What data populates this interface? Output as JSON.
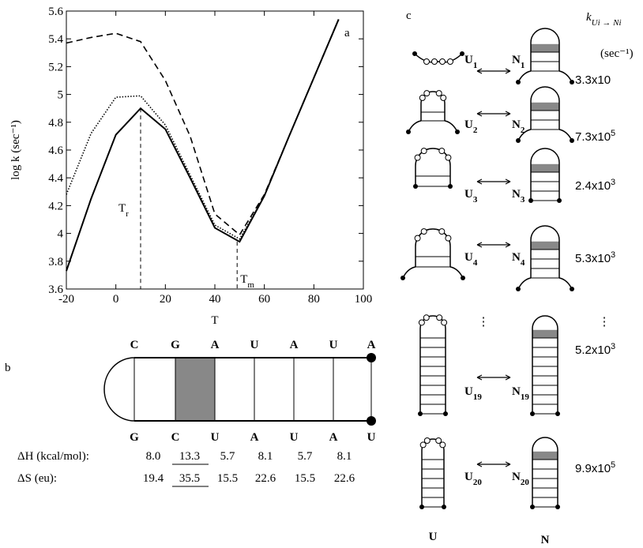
{
  "chart_data": {
    "type": "line",
    "panel_label": "a",
    "x_label": "T",
    "y_label": "log k (sec⁻¹)",
    "x": [
      -20,
      -10,
      0,
      10,
      20,
      30,
      40,
      50,
      60,
      70,
      80,
      90
    ],
    "xlim": [
      -20,
      100
    ],
    "xticks": [
      -20,
      0,
      20,
      40,
      60,
      80,
      100
    ],
    "ylim": [
      3.6,
      5.6
    ],
    "yticks": [
      3.6,
      3.8,
      4,
      4.2,
      4.4,
      4.6,
      4.8,
      5,
      5.2,
      5.4,
      5.6
    ],
    "series": [
      {
        "color": "#000000",
        "dash": "solid",
        "values": [
          3.73,
          4.25,
          4.71,
          4.9,
          4.75,
          4.4,
          4.04,
          3.94,
          4.27,
          4.7,
          5.12,
          5.54
        ]
      },
      {
        "color": "#000000",
        "dash": "dotted",
        "values": [
          4.28,
          4.72,
          4.98,
          4.99,
          4.78,
          4.42,
          4.06,
          3.96,
          4.27,
          4.7,
          5.12,
          5.54
        ]
      },
      {
        "color": "#000000",
        "dash": "dashed",
        "values": [
          5.37,
          5.41,
          5.44,
          5.38,
          5.1,
          4.7,
          4.14,
          3.99,
          4.28,
          4.7,
          5.12,
          5.54
        ]
      }
    ],
    "annotations": [
      {
        "text": "T",
        "sub": "r",
        "x": 10,
        "y": 4.9
      },
      {
        "text": "T",
        "sub": "m",
        "x": 49,
        "y": 3.94
      }
    ]
  },
  "panel_b": {
    "label": "b",
    "top_bases": [
      "C",
      "G",
      "A",
      "U",
      "A",
      "U",
      "A"
    ],
    "bottom_bases": [
      "G",
      "C",
      "U",
      "A",
      "U",
      "A",
      "U"
    ],
    "dh_label": "ΔH (kcal/mol):",
    "dh": [
      "8.0",
      "13.3",
      "5.7",
      "8.1",
      "5.7",
      "8.1"
    ],
    "ds_label": "ΔS (eu):",
    "ds": [
      "19.4",
      "35.5",
      "15.5",
      "22.6",
      "15.5",
      "22.6"
    ]
  },
  "panel_c": {
    "label": "c",
    "header": {
      "base": "k",
      "sub": "Ui → Ni"
    },
    "header_unit": "(sec⁻¹)",
    "rows": [
      {
        "u": {
          "base": "U",
          "sub": "1"
        },
        "n": {
          "base": "N",
          "sub": "1"
        },
        "rate": {
          "mantissa": "3.3x10",
          "exp": ""
        }
      },
      {
        "u": {
          "base": "U",
          "sub": "2"
        },
        "n": {
          "base": "N",
          "sub": "2"
        },
        "rate": {
          "mantissa": "7.3x10",
          "exp": "5"
        }
      },
      {
        "u": {
          "base": "U",
          "sub": "3"
        },
        "n": {
          "base": "N",
          "sub": "3"
        },
        "rate": {
          "mantissa": "2.4x10",
          "exp": "3"
        }
      },
      {
        "u": {
          "base": "U",
          "sub": "4"
        },
        "n": {
          "base": "N",
          "sub": "4"
        },
        "rate": {
          "mantissa": "5.3x10",
          "exp": "3"
        }
      },
      {
        "u": {
          "base": "U",
          "sub": "19"
        },
        "n": {
          "base": "N",
          "sub": "19"
        },
        "rate": {
          "mantissa": "5.2x10",
          "exp": "3"
        }
      },
      {
        "u": {
          "base": "U",
          "sub": "20"
        },
        "n": {
          "base": "N",
          "sub": "20"
        },
        "rate": {
          "mantissa": "9.9x10",
          "exp": "5"
        }
      }
    ],
    "footer_u": "U",
    "footer_n": "N"
  }
}
